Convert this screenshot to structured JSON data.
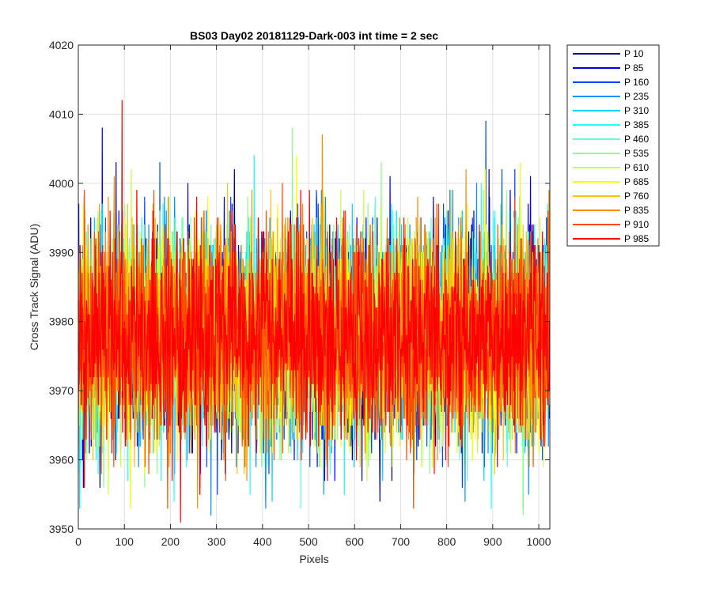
{
  "chart_data": {
    "type": "line",
    "title": "BS03 Day02 20181129-Dark-003 int time = 2 sec",
    "xlabel": "Pixels",
    "ylabel": "Cross Track Signal (ADU)",
    "xlim": [
      0,
      1024
    ],
    "ylim": [
      3950,
      4020
    ],
    "x_ticks": [
      0,
      100,
      200,
      300,
      400,
      500,
      600,
      700,
      800,
      900,
      1000
    ],
    "y_ticks": [
      3950,
      3960,
      3970,
      3980,
      3990,
      4000,
      4010,
      4020
    ],
    "x_tick_labels": [
      "0",
      "100",
      "200",
      "300",
      "400",
      "500",
      "600",
      "700",
      "800",
      "900",
      "1000"
    ],
    "y_tick_labels": [
      "3950",
      "3960",
      "3970",
      "3980",
      "3990",
      "4000",
      "4010",
      "4020"
    ],
    "grid": true,
    "legend_position": "outside-top-right",
    "n_points": 1024,
    "noise_mean": 3978,
    "noise_std": 7.5,
    "series": [
      {
        "name": "P 10",
        "color": "#00008F"
      },
      {
        "name": "P 85",
        "color": "#0000EB"
      },
      {
        "name": "P 160",
        "color": "#0047FF"
      },
      {
        "name": "P 235",
        "color": "#0093FF"
      },
      {
        "name": "P 310",
        "color": "#00D4FF"
      },
      {
        "name": "P 385",
        "color": "#1FFFFF"
      },
      {
        "name": "P 460",
        "color": "#60FFE0"
      },
      {
        "name": "P 535",
        "color": "#8AFF8A"
      },
      {
        "name": "P 610",
        "color": "#C8FF3F"
      },
      {
        "name": "P 685",
        "color": "#F7FF00"
      },
      {
        "name": "P 760",
        "color": "#FFC400"
      },
      {
        "name": "P 835",
        "color": "#FF8A00"
      },
      {
        "name": "P 910",
        "color": "#FF4A00"
      },
      {
        "name": "P 985",
        "color": "#FF0000"
      }
    ],
    "peaks": [
      {
        "series": "P 985",
        "x": 95,
        "y": 4012
      },
      {
        "series": "P 160",
        "x": 885,
        "y": 4009
      },
      {
        "series": "P 85",
        "x": 52,
        "y": 4008
      },
      {
        "series": "P 535",
        "x": 465,
        "y": 4008
      },
      {
        "series": "P 835",
        "x": 530,
        "y": 4007
      },
      {
        "series": "P 985",
        "x": 222,
        "y": 3951
      },
      {
        "series": "P 235",
        "x": 288,
        "y": 3952
      },
      {
        "series": "P 535",
        "x": 966,
        "y": 3952
      }
    ]
  }
}
